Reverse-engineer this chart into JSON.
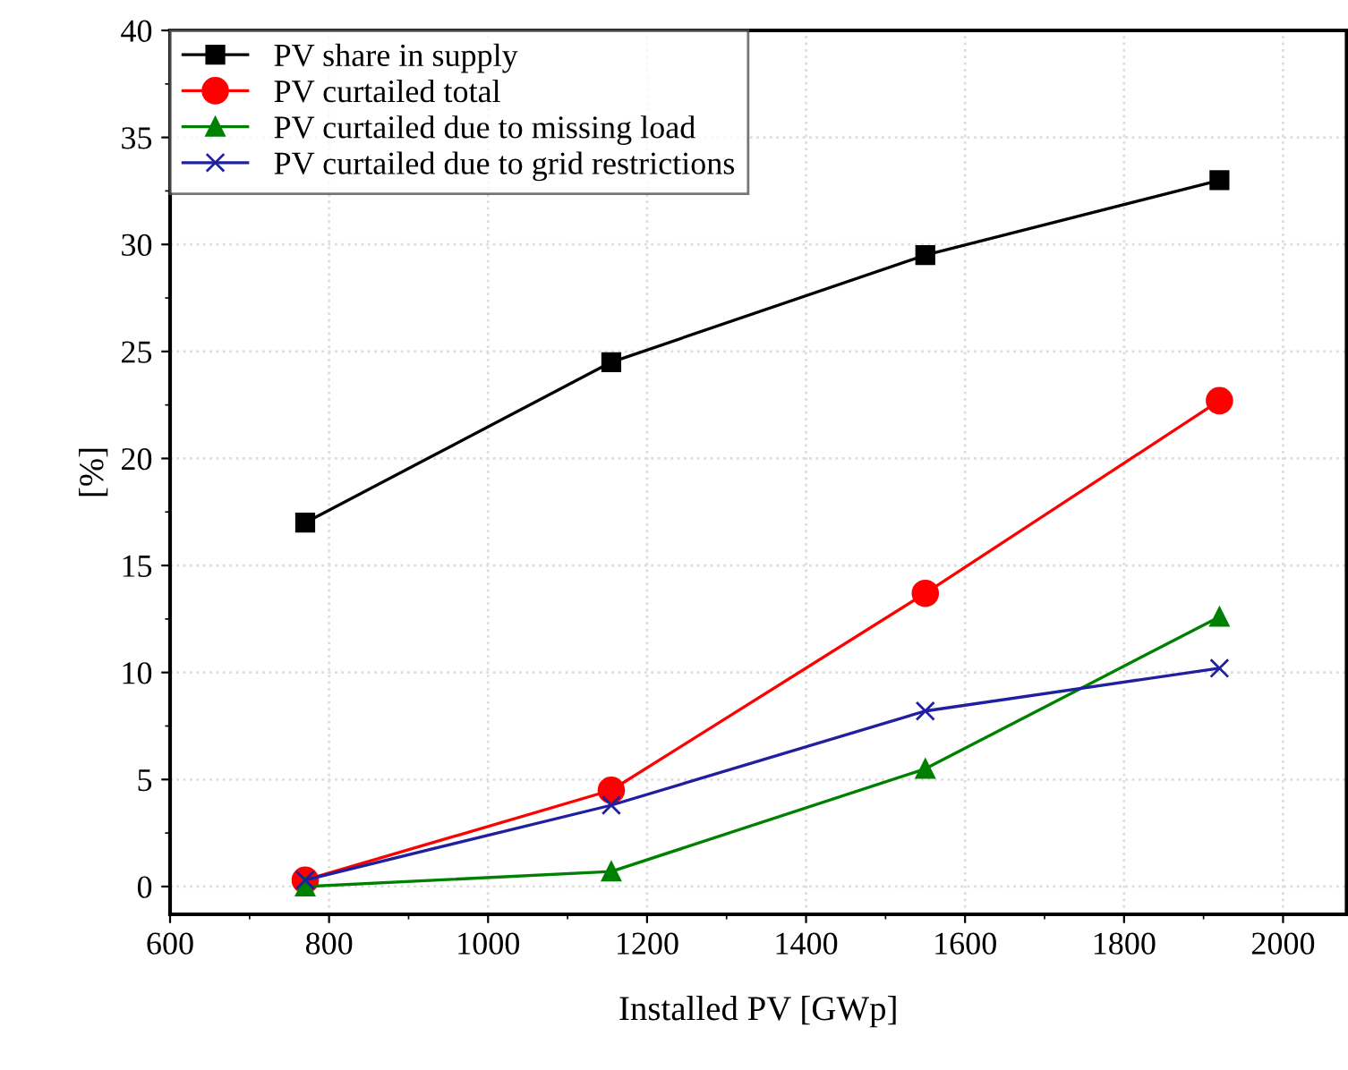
{
  "chart_data": {
    "type": "line",
    "xlabel": "Installed PV [GWp]",
    "ylabel": "[%]",
    "x": [
      770,
      1155,
      1550,
      1920
    ],
    "series": [
      {
        "name": "PV share in supply",
        "color": "#000000",
        "marker": "square",
        "values": [
          17,
          24.5,
          29.5,
          33
        ]
      },
      {
        "name": "PV curtailed total",
        "color": "#ff0000",
        "marker": "circle",
        "values": [
          0.3,
          4.5,
          13.7,
          22.7
        ]
      },
      {
        "name": "PV curtailed due to missing load",
        "color": "#008000",
        "marker": "triangle",
        "values": [
          0,
          0.7,
          5.5,
          12.6
        ]
      },
      {
        "name": "PV curtailed due to grid restrictions",
        "color": "#1f1fa0",
        "marker": "cross",
        "values": [
          0.3,
          3.8,
          8.2,
          10.2
        ]
      }
    ],
    "xlim": [
      600,
      2080
    ],
    "xticks": [
      600,
      800,
      1000,
      1200,
      1400,
      1600,
      1800,
      2000
    ],
    "ylim": [
      -1.3,
      40
    ],
    "yticks": [
      0,
      5,
      10,
      15,
      20,
      25,
      30,
      35,
      40
    ],
    "grid": true,
    "legend": "top left",
    "line_style": "solid"
  }
}
